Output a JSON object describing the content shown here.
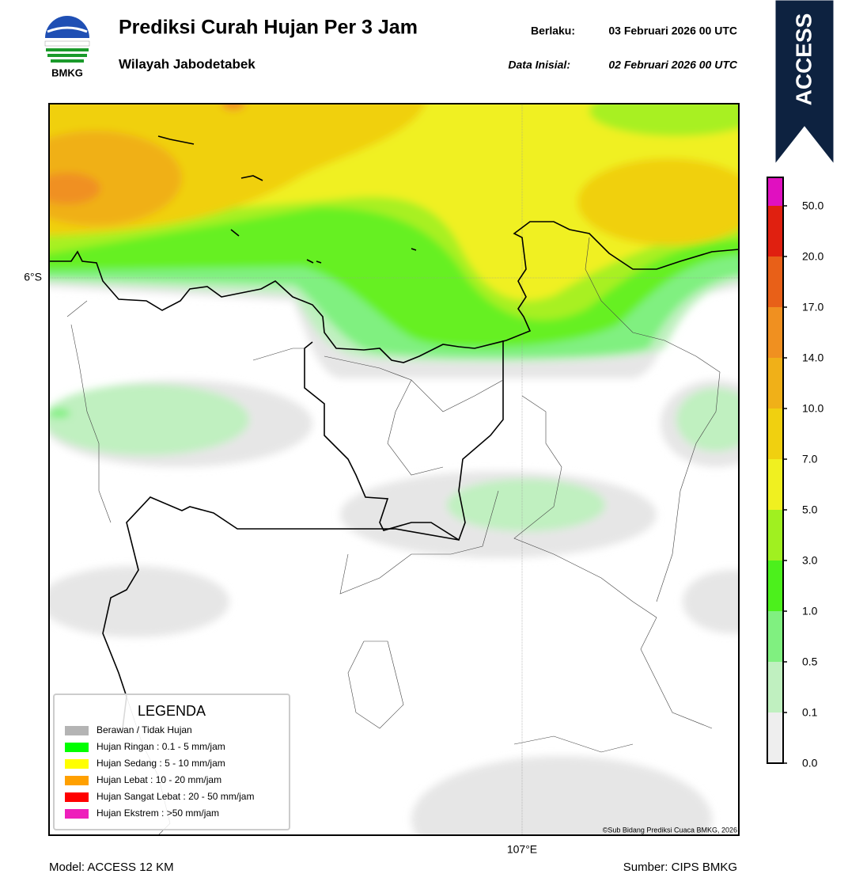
{
  "header": {
    "title": "Prediksi Curah Hujan Per 3 Jam",
    "subtitle": "Wilayah Jabodetabek",
    "valid_label": "Berlaku:",
    "valid_date": "03 Februari 2026 00 UTC",
    "initial_label": "Data Inisial:",
    "initial_date": "02 Februari 2026 00 UTC",
    "logo_text": "BMKG",
    "badge": "ACCESS"
  },
  "map": {
    "lat_label": "6°S",
    "lon_label": "107°E",
    "credit": "©Sub Bidang Prediksi Cuaca BMKG, 2026"
  },
  "legend": {
    "title": "LEGENDA",
    "items": [
      {
        "label": "Berawan / Tidak Hujan",
        "color": "#b4b4b4"
      },
      {
        "label": "Hujan Ringan : 0.1 - 5 mm/jam",
        "color": "#00ff00"
      },
      {
        "label": "Hujan Sedang : 5 - 10 mm/jam",
        "color": "#ffff00"
      },
      {
        "label": "Hujan Lebat : 10 - 20 mm/jam",
        "color": "#ffa000"
      },
      {
        "label": "Hujan Sangat Lebat : 20 - 50 mm/jam",
        "color": "#ff0000"
      },
      {
        "label": "Hujan Ekstrem : >50 mm/jam",
        "color": "#ee1fbb"
      }
    ]
  },
  "colorbar": {
    "labels": [
      "0.0",
      "0.1",
      "0.5",
      "1.0",
      "3.0",
      "5.0",
      "7.0",
      "10.0",
      "14.0",
      "17.0",
      "20.0",
      "50.0"
    ],
    "colors": [
      "#eeeeee",
      "#c0f0c0",
      "#80f080",
      "#4cf01c",
      "#a0f020",
      "#f0f020",
      "#f0d010",
      "#f0b018",
      "#f09020",
      "#e86018",
      "#e02010",
      "#e010c0"
    ]
  },
  "footer": {
    "model": "Model: ACCESS 12 KM",
    "source": "Sumber: CIPS BMKG"
  }
}
